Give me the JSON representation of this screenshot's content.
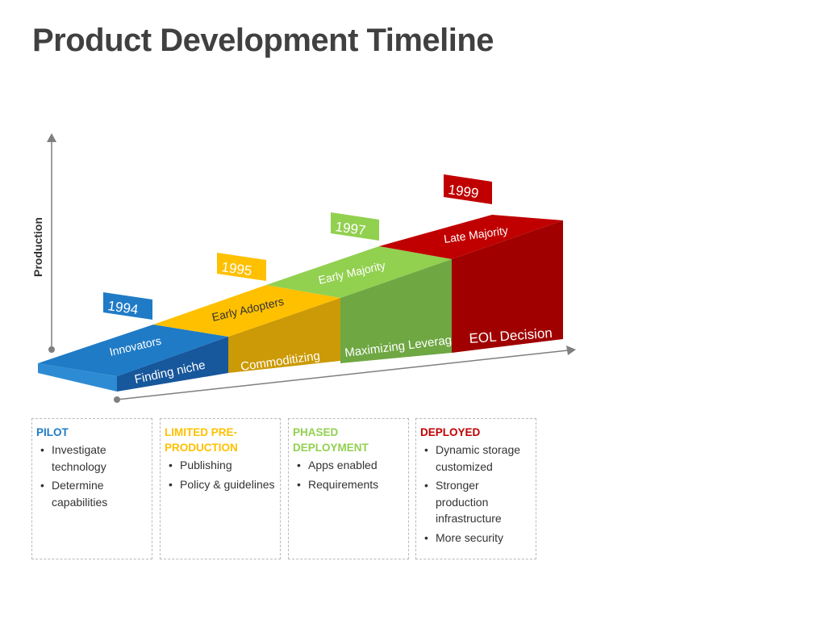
{
  "title": "Product Development Timeline",
  "y_axis_label": "Production",
  "colors": {
    "blue_top": "#1f7bc6",
    "blue_front": "#17579c",
    "blue_side": "#2d8bd4",
    "yellow_top": "#ffc000",
    "yellow_front": "#cc9a06",
    "green_top": "#92d050",
    "green_front": "#6fa743",
    "red_top": "#c00000",
    "red_front": "#a00000",
    "axis": "#7f7f7f"
  },
  "stages": [
    {
      "year": "1994",
      "top_label": "Innovators",
      "front_label": "Finding niche",
      "color": "blue"
    },
    {
      "year": "1995",
      "top_label": "Early Adopters",
      "front_label": "Commoditizing",
      "color": "yellow"
    },
    {
      "year": "1997",
      "top_label": "Early Majority",
      "front_label": "Maximizing Leverage",
      "color": "green"
    },
    {
      "year": "1999",
      "top_label": "Late Majority",
      "front_label": "EOL Decision",
      "color": "red"
    }
  ],
  "cards": [
    {
      "title": "PILOT",
      "color": "#1f7bc6",
      "items": [
        "Investigate technology",
        "Determine capabilities"
      ]
    },
    {
      "title": "LIMITED PRE-PRODUCTION",
      "color": "#ffc000",
      "items": [
        "Publishing",
        "Policy & guidelines"
      ]
    },
    {
      "title": "PHASED DEPLOYMENT",
      "color": "#92d050",
      "items": [
        "Apps enabled",
        "Requirements"
      ]
    },
    {
      "title": "DEPLOYED",
      "color": "#c00000",
      "items": [
        "Dynamic storage customized",
        "Stronger production infrastructure",
        "More security"
      ]
    }
  ]
}
